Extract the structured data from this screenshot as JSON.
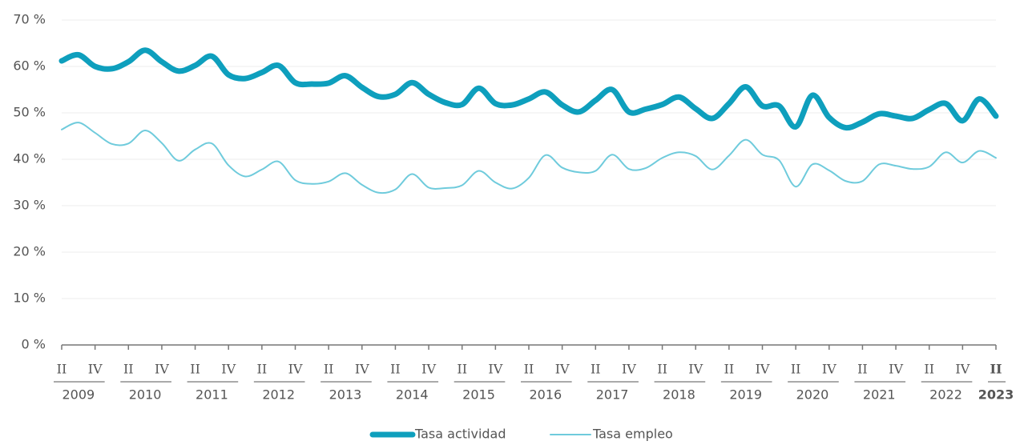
{
  "chart_data": {
    "type": "line",
    "categories": [
      "II",
      null,
      "IV",
      null,
      "II",
      null,
      "IV",
      null,
      "II",
      null,
      "IV",
      null,
      "II",
      null,
      "IV",
      null,
      "II",
      null,
      "IV",
      null,
      "II",
      null,
      "IV",
      null,
      "II",
      null,
      "IV",
      null,
      "II",
      null,
      "IV",
      null,
      "II",
      null,
      "IV",
      null,
      "II",
      null,
      "IV",
      null,
      "II",
      null,
      "IV",
      null,
      "II",
      null,
      "IV",
      null,
      "II",
      null,
      "IV",
      null,
      "II",
      null,
      "IV",
      null,
      "II"
    ],
    "years": [
      "2009",
      "2010",
      "2011",
      "2012",
      "2013",
      "2014",
      "2015",
      "2016",
      "2017",
      "2018",
      "2019",
      "2020",
      "2021",
      "2022",
      "2023"
    ],
    "series": [
      {
        "name": "Tasa actividad",
        "color": "#0e9fbd",
        "values": [
          61.2,
          62.5,
          60,
          59.5,
          61,
          63.5,
          61,
          59,
          60.2,
          62.2,
          58.2,
          57.4,
          58.7,
          60.2,
          56.5,
          56.2,
          56.4,
          58,
          55.5,
          53.5,
          54,
          56.5,
          54,
          52.2,
          51.8,
          55.3,
          52,
          51.7,
          53,
          54.5,
          51.7,
          50.2,
          52.7,
          55,
          50.2,
          50.8,
          51.8,
          53.4,
          50.9,
          48.8,
          52,
          55.6,
          51.5,
          51.5,
          47,
          53.8,
          49,
          46.8,
          48,
          49.8,
          49.3,
          48.8,
          50.7,
          52,
          48.3,
          53,
          49.3
        ]
      },
      {
        "name": "Tasa empleo",
        "color": "#6fcbdc",
        "values": [
          46.4,
          47.9,
          45.7,
          43.3,
          43.4,
          46.2,
          43.5,
          39.7,
          42.1,
          43.4,
          38.7,
          36.3,
          37.8,
          39.5,
          35.5,
          34.7,
          35.2,
          37,
          34.5,
          32.8,
          33.5,
          36.8,
          33.9,
          33.8,
          34.4,
          37.5,
          35,
          33.7,
          36,
          40.9,
          38.2,
          37.2,
          37.5,
          41,
          37.9,
          38.1,
          40.3,
          41.5,
          40.7,
          37.8,
          40.8,
          44.2,
          41,
          39.8,
          34.1,
          38.9,
          37.6,
          35.3,
          35.3,
          38.9,
          38.6,
          37.9,
          38.4,
          41.5,
          39.3,
          41.8,
          40.3
        ]
      }
    ],
    "ylim": [
      0,
      70
    ],
    "yticks": [
      {
        "value": 0,
        "label": "0 %"
      },
      {
        "value": 10,
        "label": "10 %"
      },
      {
        "value": 20,
        "label": "20 %"
      },
      {
        "value": 30,
        "label": "30 %"
      },
      {
        "value": 40,
        "label": "40 %"
      },
      {
        "value": 50,
        "label": "50 %"
      },
      {
        "value": 60,
        "label": "60 %"
      },
      {
        "value": 70,
        "label": "70 %"
      }
    ],
    "grid": true,
    "legend": "bottom"
  }
}
